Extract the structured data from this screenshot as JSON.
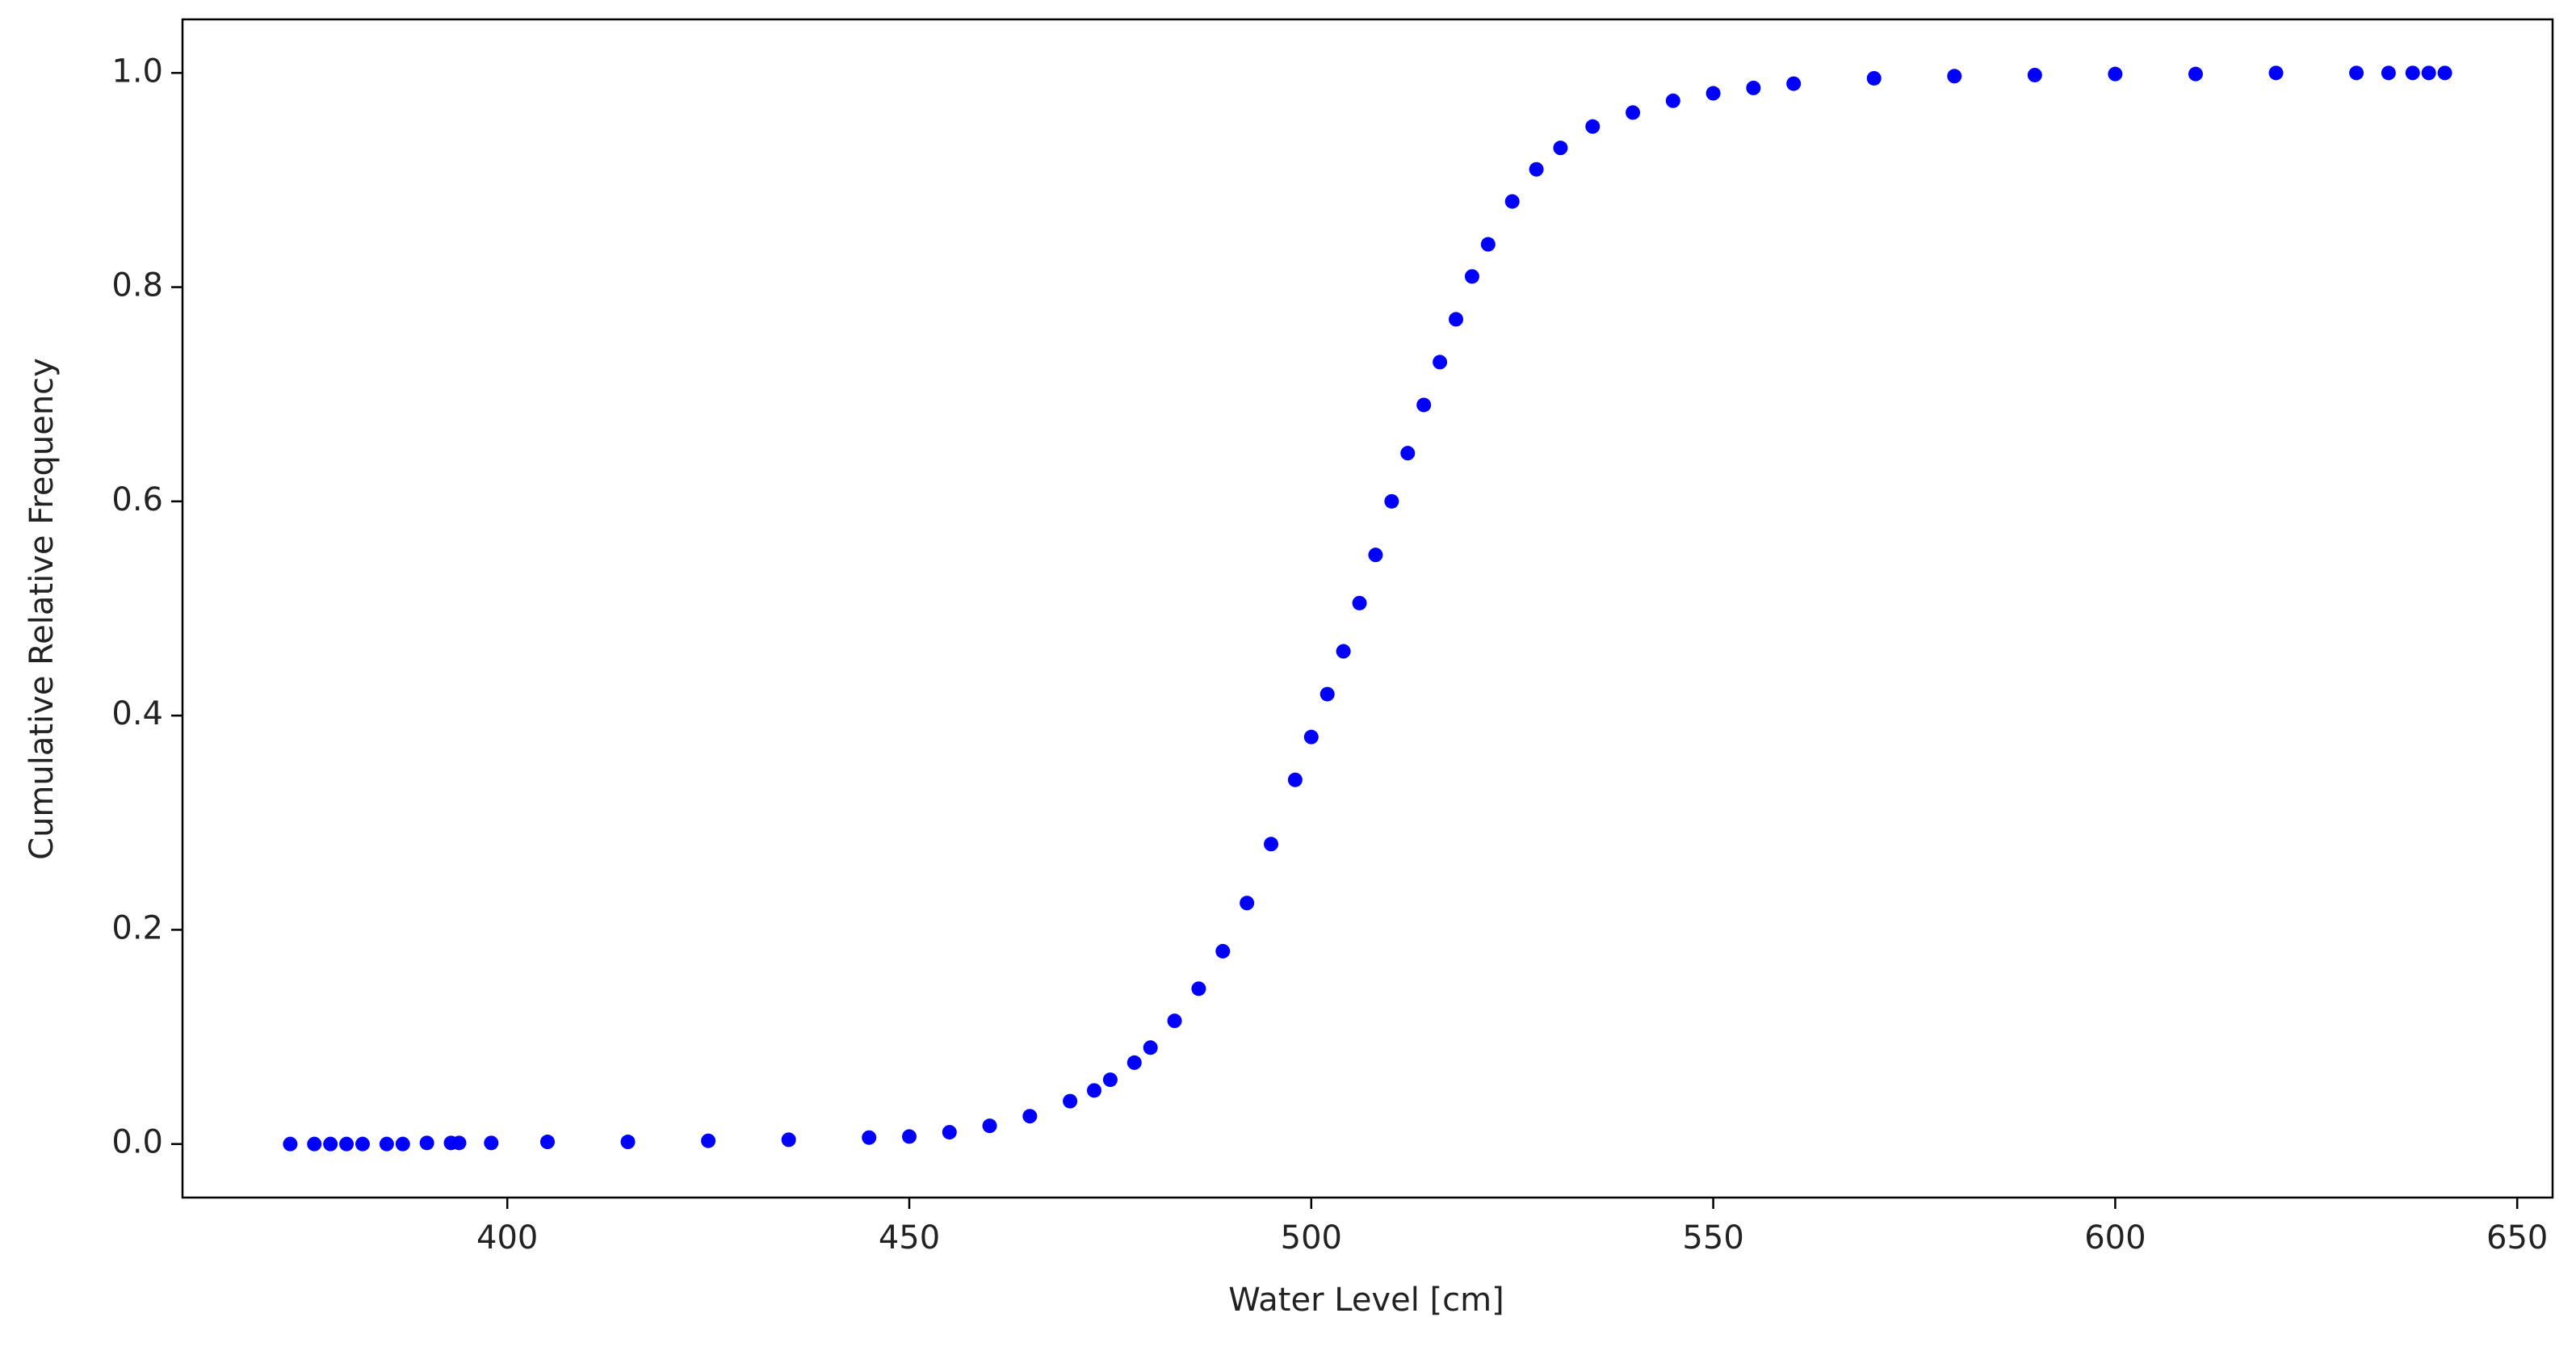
{
  "chart_data": {
    "type": "scatter",
    "xlabel": "Water Level [cm]",
    "ylabel": "Cumulative Relative Frequency",
    "color": "#0000ff",
    "x": [
      373,
      376,
      378,
      380,
      382,
      385,
      387,
      390,
      393,
      394,
      398,
      405,
      415,
      425,
      435,
      445,
      450,
      455,
      460,
      465,
      470,
      473,
      475,
      478,
      480,
      483,
      486,
      489,
      492,
      495,
      498,
      500,
      502,
      504,
      506,
      508,
      510,
      512,
      514,
      516,
      518,
      520,
      522,
      525,
      528,
      531,
      535,
      540,
      545,
      550,
      555,
      560,
      570,
      580,
      590,
      600,
      610,
      620,
      630,
      634,
      637,
      639,
      641
    ],
    "y": [
      0.0,
      0.0,
      0.0,
      0.0,
      0.0,
      0.0,
      0.0,
      0.001,
      0.001,
      0.001,
      0.001,
      0.002,
      0.002,
      0.003,
      0.004,
      0.006,
      0.007,
      0.011,
      0.017,
      0.026,
      0.04,
      0.05,
      0.06,
      0.076,
      0.09,
      0.115,
      0.145,
      0.18,
      0.225,
      0.28,
      0.34,
      0.38,
      0.42,
      0.46,
      0.505,
      0.55,
      0.6,
      0.645,
      0.69,
      0.73,
      0.77,
      0.81,
      0.84,
      0.88,
      0.91,
      0.93,
      0.95,
      0.963,
      0.974,
      0.981,
      0.986,
      0.99,
      0.995,
      0.997,
      0.998,
      0.999,
      0.999,
      1.0,
      1.0,
      1.0,
      1.0,
      1.0,
      1.0
    ],
    "xlim": [
      359.6,
      654.4
    ],
    "ylim": [
      -0.05,
      1.05
    ],
    "xticks": [
      400,
      450,
      500,
      550,
      600,
      650
    ],
    "yticks": [
      {
        "value": 0,
        "label": "0.0"
      },
      0.2,
      0.4,
      0.6,
      0.8,
      {
        "value": 1,
        "label": "1.0"
      }
    ]
  }
}
